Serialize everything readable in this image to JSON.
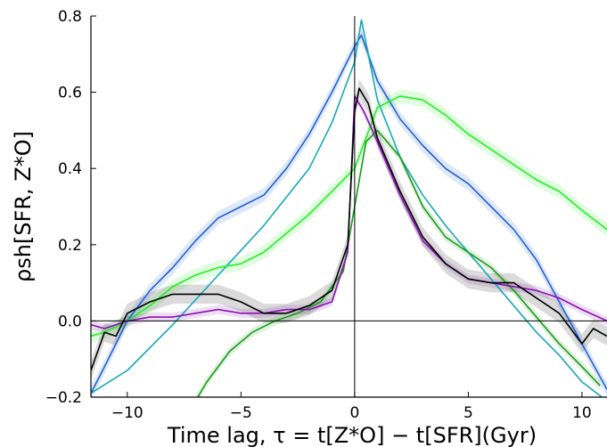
{
  "chart_data": {
    "type": "line",
    "title": "",
    "xlabel": "Time lag, τ = t[Z*O] − t[SFR](Gyr)",
    "ylabel": "ρsh[SFR, Z*O]",
    "xlim": [
      -11.6,
      11.1
    ],
    "ylim": [
      -0.2,
      0.8
    ],
    "xticks": [
      -10,
      -5,
      0,
      5,
      10
    ],
    "yticks": [
      -0.2,
      0.0,
      0.2,
      0.4,
      0.6,
      0.8
    ],
    "xtick_labels": [
      "−10",
      "−5",
      "0",
      "5",
      "10"
    ],
    "ytick_labels": [
      "−0.2",
      "0.0",
      "0.2",
      "0.4",
      "0.6",
      "0.8"
    ],
    "grid": false,
    "reference_lines": {
      "y": 0,
      "x": 0
    },
    "series": [
      {
        "color": "#1f5fd6",
        "band": 0.018,
        "x": [
          -11.6,
          -11,
          -10,
          -9,
          -8,
          -7,
          -6,
          -5,
          -4,
          -3,
          -2,
          -1,
          0,
          0.3,
          1,
          2,
          3,
          4,
          5,
          6,
          7,
          8,
          9,
          10,
          11.1
        ],
        "y": [
          -0.19,
          -0.12,
          0.0,
          0.08,
          0.14,
          0.21,
          0.27,
          0.3,
          0.33,
          0.4,
          0.49,
          0.6,
          0.72,
          0.75,
          0.63,
          0.53,
          0.46,
          0.4,
          0.36,
          0.3,
          0.24,
          0.16,
          0.05,
          -0.06,
          -0.18
        ]
      },
      {
        "color": "#14a8b8",
        "band": 0.0,
        "x": [
          -11.6,
          -10,
          -8,
          -6,
          -4,
          -2,
          -1,
          0,
          0.3,
          1,
          2,
          3,
          4,
          5,
          6,
          7,
          8,
          9,
          10,
          11.1
        ],
        "y": [
          -0.19,
          -0.13,
          -0.01,
          0.12,
          0.25,
          0.4,
          0.52,
          0.68,
          0.79,
          0.58,
          0.43,
          0.33,
          0.25,
          0.18,
          0.11,
          0.04,
          -0.03,
          -0.09,
          -0.16,
          -0.21
        ]
      },
      {
        "color": "#22ee22",
        "band": 0.018,
        "x": [
          -11.6,
          -11,
          -10,
          -9,
          -8,
          -7,
          -6,
          -5,
          -4,
          -3,
          -2,
          -1,
          0,
          0.5,
          1,
          2,
          3,
          4,
          5,
          6,
          7,
          8,
          9,
          10,
          11.1
        ],
        "y": [
          -0.04,
          -0.03,
          0.0,
          0.04,
          0.09,
          0.12,
          0.14,
          0.15,
          0.18,
          0.23,
          0.28,
          0.34,
          0.4,
          0.48,
          0.56,
          0.59,
          0.58,
          0.54,
          0.49,
          0.45,
          0.41,
          0.37,
          0.34,
          0.29,
          0.24
        ]
      },
      {
        "color": "#1a9a1a",
        "band": 0.012,
        "x": [
          -7,
          -6.5,
          -5.5,
          -4.5,
          -3.5,
          -2.5,
          -1.5,
          -0.5,
          0,
          0.5,
          1,
          2,
          3,
          4,
          5,
          6,
          7,
          8,
          9,
          10,
          10.8
        ],
        "y": [
          -0.21,
          -0.16,
          -0.08,
          -0.03,
          0.0,
          0.02,
          0.05,
          0.13,
          0.3,
          0.47,
          0.5,
          0.43,
          0.3,
          0.22,
          0.18,
          0.14,
          0.08,
          0.01,
          -0.06,
          -0.12,
          -0.17
        ]
      },
      {
        "color": "#8a12b4",
        "band": 0.012,
        "x": [
          -11.6,
          -11,
          -10,
          -9,
          -8,
          -7,
          -6,
          -5,
          -4,
          -3,
          -2,
          -1,
          -0.3,
          0,
          0.4,
          1,
          2,
          3,
          4,
          5,
          6,
          7,
          8,
          9,
          10,
          11.1
        ],
        "y": [
          -0.01,
          -0.02,
          0.0,
          0.01,
          0.01,
          0.02,
          0.03,
          0.02,
          0.02,
          0.03,
          0.03,
          0.05,
          0.18,
          0.59,
          0.55,
          0.47,
          0.33,
          0.21,
          0.15,
          0.11,
          0.1,
          0.09,
          0.08,
          0.06,
          0.03,
          0.0
        ]
      },
      {
        "color": "#000000",
        "band": 0.025,
        "x": [
          -11.6,
          -11,
          -10.5,
          -10,
          -9,
          -8,
          -7,
          -6,
          -5,
          -4,
          -3,
          -2,
          -1,
          -0.3,
          0,
          0.2,
          0.6,
          1,
          2,
          3,
          4,
          5,
          6,
          7,
          8,
          9,
          10,
          10.5,
          11.1
        ],
        "y": [
          -0.13,
          -0.03,
          -0.04,
          0.02,
          0.05,
          0.07,
          0.07,
          0.07,
          0.05,
          0.02,
          0.02,
          0.04,
          0.08,
          0.2,
          0.55,
          0.61,
          0.57,
          0.48,
          0.34,
          0.22,
          0.15,
          0.11,
          0.1,
          0.1,
          0.06,
          0.02,
          -0.06,
          -0.02,
          -0.04
        ]
      }
    ]
  }
}
